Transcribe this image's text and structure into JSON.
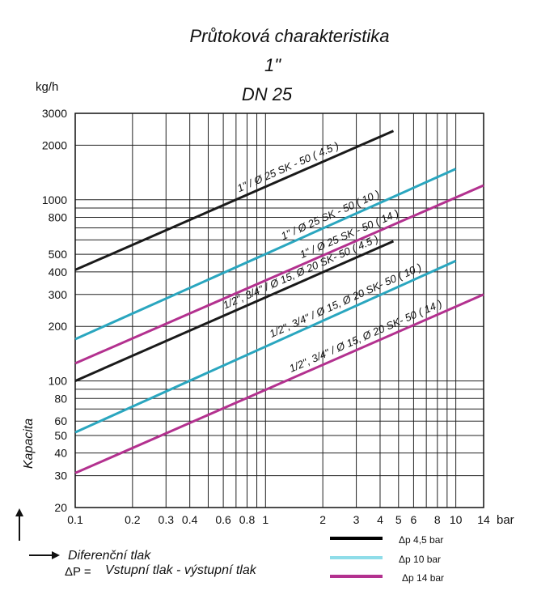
{
  "chart_data": {
    "type": "line",
    "title": "Průtoková charakteristika",
    "subtitle_line1": "1\"",
    "subtitle_line2": "DN 25",
    "y_unit": "kg/h",
    "x_unit": "bar",
    "ylabel": "Kapacita",
    "x_scale": "log",
    "y_scale": "log",
    "xlim": [
      0.1,
      14
    ],
    "ylim": [
      20,
      3000
    ],
    "grid": true,
    "x_ticks": [
      {
        "v": 0.1,
        "label": "0.1"
      },
      {
        "v": 0.2,
        "label": "0.2"
      },
      {
        "v": 0.3,
        "label": "0.3"
      },
      {
        "v": 0.4,
        "label": "0.4"
      },
      {
        "v": 0.6,
        "label": "0.6"
      },
      {
        "v": 0.8,
        "label": "0.8"
      },
      {
        "v": 1,
        "label": "1"
      },
      {
        "v": 2,
        "label": "2"
      },
      {
        "v": 3,
        "label": "3"
      },
      {
        "v": 4,
        "label": "4"
      },
      {
        "v": 5,
        "label": "5"
      },
      {
        "v": 6,
        "label": "6"
      },
      {
        "v": 8,
        "label": "8"
      },
      {
        "v": 10,
        "label": "10"
      },
      {
        "v": 14,
        "label": "14"
      }
    ],
    "x_grid": [
      0.1,
      0.2,
      0.3,
      0.4,
      0.5,
      0.6,
      0.7,
      0.8,
      0.9,
      1,
      2,
      3,
      4,
      5,
      6,
      7,
      8,
      9,
      10,
      14
    ],
    "y_ticks": [
      {
        "v": 3000,
        "label": "3000"
      },
      {
        "v": 2000,
        "label": "2000"
      },
      {
        "v": 1000,
        "label": "1000"
      },
      {
        "v": 800,
        "label": "800"
      },
      {
        "v": 500,
        "label": "500"
      },
      {
        "v": 400,
        "label": "400"
      },
      {
        "v": 300,
        "label": "300"
      },
      {
        "v": 200,
        "label": "200"
      },
      {
        "v": 100,
        "label": "100"
      },
      {
        "v": 80,
        "label": "80"
      },
      {
        "v": 60,
        "label": "60"
      },
      {
        "v": 50,
        "label": "50"
      },
      {
        "v": 40,
        "label": "40"
      },
      {
        "v": 30,
        "label": "30"
      },
      {
        "v": 20,
        "label": "20"
      }
    ],
    "y_grid": [
      20,
      30,
      40,
      50,
      60,
      70,
      80,
      90,
      100,
      200,
      300,
      400,
      500,
      600,
      700,
      800,
      900,
      1000,
      2000,
      3000
    ],
    "series": [
      {
        "label": "1\" / Ø 25 SK - 50 ( 4.5 )",
        "color": "#1a1a1a",
        "x": [
          0.1,
          4.7
        ],
        "y": [
          410,
          2400
        ]
      },
      {
        "label": "1\" / Ø 25 SK - 50 ( 10 )",
        "color": "#2aa6bf",
        "x": [
          0.1,
          10
        ],
        "y": [
          170,
          1480
        ]
      },
      {
        "label": "1\" / Ø 25 SK - 50 ( 14 )",
        "color": "#b3318f",
        "x": [
          0.1,
          14
        ],
        "y": [
          125,
          1200
        ]
      },
      {
        "label": "1/2\", 3/4\" / Ø 15, Ø 20 SK- 50 ( 4.5 )",
        "color": "#1a1a1a",
        "x": [
          0.1,
          4.7
        ],
        "y": [
          100,
          590
        ]
      },
      {
        "label": "1/2\", 3/4\" / Ø 15, Ø 20 SK- 50 ( 10 )",
        "color": "#2aa6bf",
        "x": [
          0.1,
          10
        ],
        "y": [
          52,
          460
        ]
      },
      {
        "label": "1/2\", 3/4\" / Ø 15, Ø 20 SK- 50 ( 14 )",
        "color": "#b3318f",
        "x": [
          0.1,
          14
        ],
        "y": [
          31,
          300
        ]
      }
    ],
    "legend": [
      {
        "label": "Δp 4,5 bar",
        "color": "#000000"
      },
      {
        "label": "Δp 10 bar",
        "color": "#8fdde9"
      },
      {
        "label": "Δp 14 bar",
        "color": "#b3318f"
      }
    ],
    "x_axis_note": "Diferenční tlak",
    "formula_symbol": "ΔP =",
    "formula_text": "Vstupní tlak - výstupní tlak"
  }
}
